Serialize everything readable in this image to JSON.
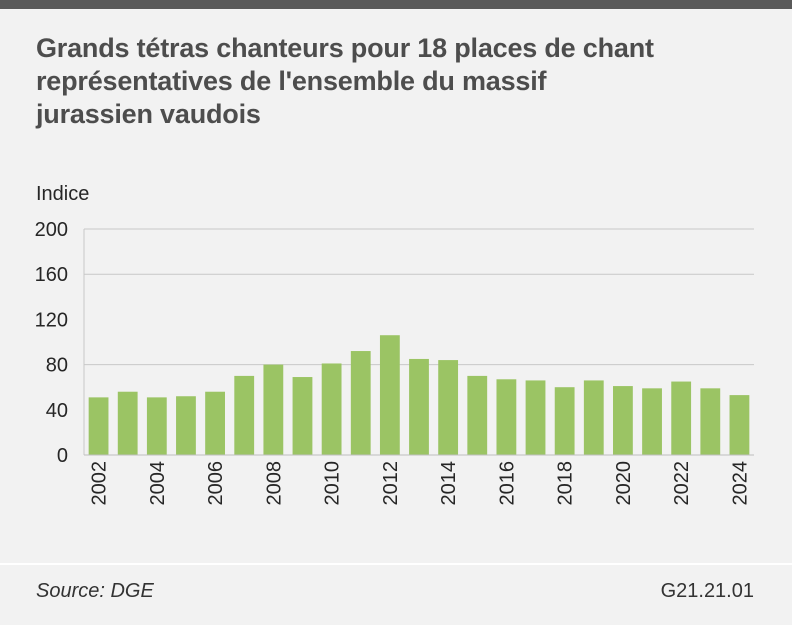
{
  "header": {
    "title_lines": [
      "Grands tétras chanteurs pour 18 places de chant",
      "représentatives de l'ensemble du massif",
      "jurassien vaudois"
    ]
  },
  "footer": {
    "source": "Source: DGE",
    "code": "G21.21.01"
  },
  "colors": {
    "bar": "#9bc464",
    "grid": "#c8c8c8",
    "axis_text": "#262626"
  },
  "chart_data": {
    "type": "bar",
    "title": "Grands tétras chanteurs pour 18 places de chant représentatives de l'ensemble du massif jurassien vaudois",
    "ylabel": "Indice",
    "xlabel": "",
    "ylim": [
      0,
      200
    ],
    "y_ticks": [
      0,
      40,
      80,
      120,
      160,
      200
    ],
    "gridlines_at": [
      80,
      160,
      200
    ],
    "categories": [
      "2002",
      "2003",
      "2004",
      "2005",
      "2006",
      "2007",
      "2008",
      "2009",
      "2010",
      "2011",
      "2012",
      "2013",
      "2014",
      "2015",
      "2016",
      "2017",
      "2018",
      "2019",
      "2020",
      "2021",
      "2022",
      "2023",
      "2024"
    ],
    "x_tick_labels": [
      "2002",
      "",
      "2004",
      "",
      "2006",
      "",
      "2008",
      "",
      "2010",
      "",
      "2012",
      "",
      "2014",
      "",
      "2016",
      "",
      "2018",
      "",
      "2020",
      "",
      "2022",
      "",
      "2024"
    ],
    "values": [
      51,
      56,
      51,
      52,
      56,
      70,
      80,
      69,
      81,
      92,
      106,
      85,
      84,
      70,
      67,
      66,
      60,
      66,
      61,
      59,
      65,
      59,
      53
    ]
  }
}
